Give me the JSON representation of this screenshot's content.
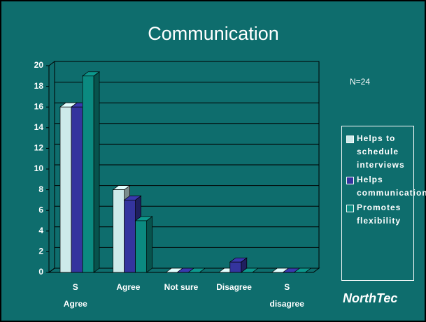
{
  "chart_data": {
    "type": "bar",
    "title": "Communication",
    "annotation": "N=24",
    "logo": "NorthTec",
    "categories": [
      "S Agree",
      "Agree",
      "Not sure",
      "Disagree",
      "S disagree"
    ],
    "series": [
      {
        "name": "Helps to schedule interviews",
        "color": "#cdeaea",
        "values": [
          16,
          8,
          0,
          0,
          0
        ]
      },
      {
        "name": "Helps communication",
        "color": "#34349e",
        "values": [
          16,
          7,
          0,
          1,
          0
        ]
      },
      {
        "name": "Promotes flexibility",
        "color": "#0b8a80",
        "values": [
          19,
          5,
          0,
          0,
          0
        ]
      }
    ],
    "ylim": [
      0,
      20
    ],
    "yticks": [
      0,
      2,
      4,
      6,
      8,
      10,
      12,
      14,
      16,
      18,
      20
    ],
    "grid": true
  }
}
